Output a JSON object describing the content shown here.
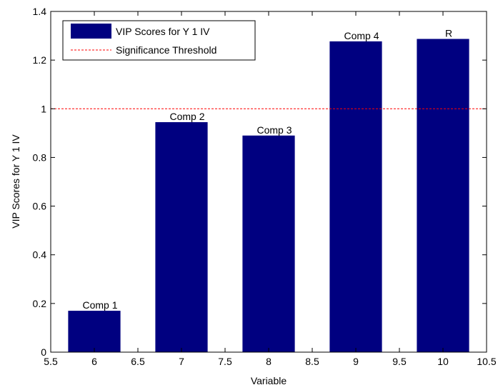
{
  "chart_data": {
    "type": "bar",
    "x": [
      6,
      7,
      8,
      9,
      10
    ],
    "values": [
      0.17,
      0.945,
      0.89,
      1.277,
      1.287
    ],
    "bar_labels": [
      "Comp 1",
      "Comp  2",
      "Comp 3",
      "Comp 4",
      "R"
    ],
    "xlabel": "Variable",
    "ylabel": "VIP Scores for Y 1 IV",
    "xlim": [
      5.5,
      10.5
    ],
    "ylim": [
      0,
      1.4
    ],
    "xticks": [
      5.5,
      6,
      6.5,
      7,
      7.5,
      8,
      8.5,
      9,
      9.5,
      10,
      10.5
    ],
    "xtick_labels": [
      "5.5",
      "6",
      "6.5",
      "7",
      "7.5",
      "8",
      "8.5",
      "9",
      "9.5",
      "10",
      "10.5"
    ],
    "yticks": [
      0,
      0.2,
      0.4,
      0.6,
      0.8,
      1,
      1.2,
      1.4
    ],
    "ytick_labels": [
      "0",
      "0.2",
      "0.4",
      "0.6",
      "0.8",
      "1",
      "1.2",
      "1.4"
    ],
    "bar_width": 0.6,
    "threshold": 1.0,
    "bar_color": "#000080",
    "threshold_color": "#ff0000",
    "grid": false,
    "legend": {
      "placement": "top-left",
      "entries": [
        {
          "label": "VIP Scores for Y 1 IV",
          "kind": "bar"
        },
        {
          "label": "Significance Threshold",
          "kind": "dashed-line"
        }
      ]
    }
  }
}
